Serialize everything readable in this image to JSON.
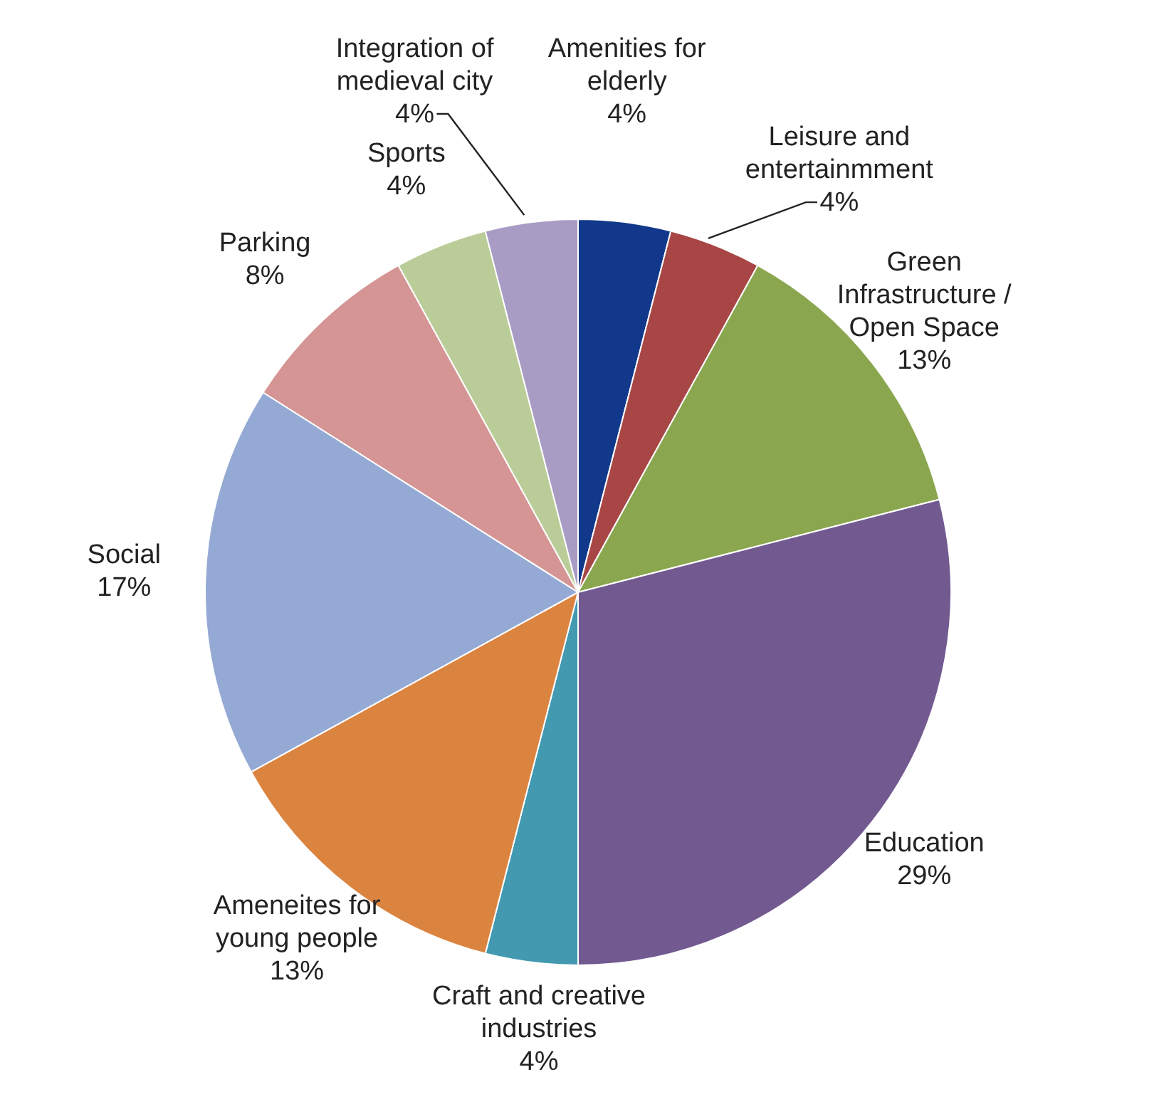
{
  "chart_data": {
    "type": "pie",
    "categories": [
      "Amenities for elderly",
      "Leisure and entertainmment",
      "Green Infrastructure / Open Space",
      "Education",
      "Craft and creative industries",
      "Ameneites for young people",
      "Social",
      "Parking",
      "Sports",
      "Integration of medieval city"
    ],
    "values": [
      4,
      4,
      13,
      29,
      4,
      13,
      17,
      8,
      4,
      4
    ],
    "value_labels": [
      "4%",
      "4%",
      "13%",
      "29%",
      "4%",
      "13%",
      "17%",
      "8%",
      "4%",
      "4%"
    ],
    "colors": [
      "#12388c",
      "#a84646",
      "#8aa64e",
      "#725a90",
      "#4299b0",
      "#db8440",
      "#94aad4",
      "#d49594",
      "#bacd98",
      "#a89cc4"
    ],
    "legend": false
  }
}
